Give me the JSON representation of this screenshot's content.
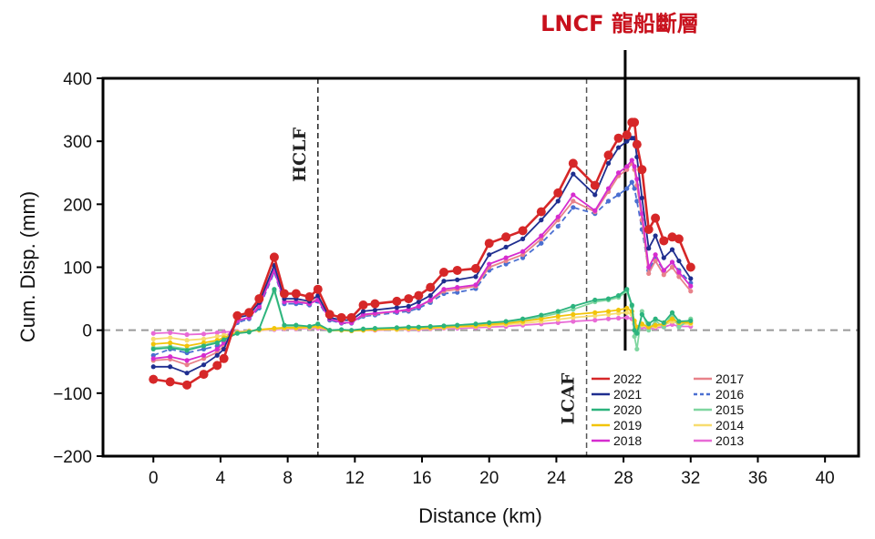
{
  "chart_data": {
    "type": "line",
    "title": "",
    "xlabel": "Distance (km)",
    "ylabel": "Cum. Disp. (mm)",
    "xlim": [
      -3,
      42
    ],
    "ylim": [
      -200,
      400
    ],
    "xticks": [
      0,
      4,
      8,
      12,
      16,
      20,
      24,
      28,
      32,
      36,
      40
    ],
    "yticks": [
      -200,
      -100,
      0,
      100,
      200,
      300,
      400
    ],
    "grid": false,
    "zero_line": 0,
    "legend_position": "bottom-right",
    "annotation": "LNCF 龍船斷層",
    "fault_lines": [
      {
        "label": "HCLF",
        "x": 9.8,
        "style": "dashed"
      },
      {
        "label": "LCAF",
        "x": 25.8,
        "style": "dashed"
      },
      {
        "label": "LNCF",
        "x": 28.1,
        "style": "solid"
      }
    ],
    "x": [
      0,
      1,
      2,
      3,
      3.8,
      4.2,
      5,
      5.7,
      6.3,
      7.2,
      7.8,
      8.5,
      9.3,
      9.8,
      10.5,
      11.2,
      11.8,
      12.5,
      13.2,
      14.5,
      15.2,
      15.8,
      16.5,
      17.3,
      18.1,
      19.2,
      20,
      21,
      22,
      23.1,
      24.1,
      25,
      26.3,
      27.1,
      27.7,
      28.2,
      28.5,
      28.65,
      28.8,
      29.1,
      29.5,
      29.9,
      30.4,
      30.9,
      31.3,
      32
    ],
    "series": [
      {
        "name": "2022",
        "color": "#d62728",
        "dashed": false,
        "marker": "large",
        "values": [
          -78,
          -82,
          -87,
          -70,
          -56,
          -45,
          23,
          28,
          50,
          116,
          58,
          58,
          53,
          65,
          25,
          20,
          20,
          40,
          42,
          46,
          50,
          55,
          68,
          92,
          95,
          98,
          138,
          148,
          158,
          188,
          218,
          265,
          230,
          278,
          305,
          310,
          330,
          330,
          295,
          255,
          160,
          178,
          142,
          148,
          145,
          100
        ]
      },
      {
        "name": "2021",
        "color": "#1f2e8f",
        "dashed": false,
        "marker": "small",
        "values": [
          -58,
          -58,
          -68,
          -55,
          -40,
          -30,
          20,
          24,
          44,
          103,
          50,
          50,
          46,
          55,
          20,
          16,
          16,
          30,
          32,
          36,
          38,
          45,
          55,
          78,
          80,
          85,
          120,
          132,
          145,
          175,
          205,
          248,
          215,
          265,
          290,
          300,
          305,
          305,
          275,
          210,
          130,
          150,
          115,
          128,
          110,
          82
        ]
      },
      {
        "name": "2020",
        "color": "#2bb37d",
        "dashed": false,
        "marker": "small",
        "values": [
          -30,
          -28,
          -32,
          -25,
          -20,
          -15,
          -5,
          -3,
          2,
          65,
          8,
          8,
          6,
          10,
          0,
          1,
          0,
          2,
          3,
          4,
          5,
          5,
          6,
          7,
          8,
          10,
          12,
          14,
          18,
          24,
          30,
          38,
          48,
          50,
          55,
          65,
          40,
          0,
          -5,
          25,
          10,
          18,
          12,
          28,
          14,
          15
        ]
      },
      {
        "name": "2019",
        "color": "#f2c40a",
        "dashed": false,
        "marker": "small",
        "values": [
          -22,
          -20,
          -25,
          -20,
          -16,
          -12,
          -4,
          -2,
          1,
          3,
          4,
          4,
          5,
          6,
          0,
          0,
          -1,
          0,
          1,
          2,
          3,
          3,
          4,
          5,
          6,
          7,
          9,
          11,
          14,
          18,
          22,
          25,
          28,
          30,
          32,
          35,
          30,
          15,
          5,
          10,
          5,
          8,
          10,
          18,
          12,
          12
        ]
      },
      {
        "name": "2018",
        "color": "#d62ccf",
        "dashed": false,
        "marker": "small",
        "values": [
          -45,
          -42,
          -48,
          -40,
          -30,
          -20,
          15,
          20,
          38,
          95,
          45,
          45,
          42,
          48,
          18,
          12,
          12,
          25,
          27,
          30,
          33,
          38,
          48,
          65,
          68,
          72,
          105,
          115,
          125,
          150,
          180,
          215,
          190,
          225,
          250,
          260,
          270,
          260,
          240,
          185,
          100,
          120,
          95,
          108,
          92,
          70
        ]
      },
      {
        "name": "2017",
        "color": "#e8828a",
        "dashed": false,
        "marker": "small",
        "values": [
          -48,
          -46,
          -55,
          -45,
          -35,
          -25,
          15,
          20,
          38,
          98,
          46,
          46,
          43,
          50,
          18,
          12,
          12,
          24,
          26,
          30,
          32,
          38,
          47,
          62,
          65,
          70,
          100,
          110,
          120,
          145,
          175,
          205,
          188,
          220,
          245,
          255,
          265,
          255,
          230,
          175,
          90,
          110,
          88,
          100,
          85,
          62
        ]
      },
      {
        "name": "2016",
        "color": "#4a6fd1",
        "dashed": true,
        "marker": "small",
        "values": [
          -40,
          -30,
          -36,
          -30,
          -25,
          -18,
          12,
          18,
          35,
          92,
          42,
          42,
          40,
          46,
          16,
          11,
          11,
          22,
          24,
          28,
          30,
          35,
          44,
          58,
          60,
          66,
          95,
          105,
          115,
          138,
          165,
          195,
          185,
          205,
          215,
          225,
          235,
          225,
          205,
          160,
          95,
          115,
          95,
          108,
          95,
          75
        ]
      },
      {
        "name": "2015",
        "color": "#7fd6a0",
        "dashed": false,
        "marker": "small",
        "values": [
          -28,
          -26,
          -30,
          -24,
          -18,
          -12,
          -4,
          -2,
          2,
          62,
          6,
          6,
          5,
          8,
          -1,
          0,
          -1,
          1,
          2,
          3,
          4,
          4,
          5,
          6,
          7,
          9,
          11,
          13,
          16,
          21,
          27,
          33,
          45,
          48,
          52,
          62,
          38,
          -10,
          -30,
          30,
          0,
          15,
          5,
          25,
          5,
          18
        ]
      },
      {
        "name": "2014",
        "color": "#f7dc6f",
        "dashed": false,
        "marker": "small",
        "values": [
          -14,
          -12,
          -16,
          -14,
          -10,
          -8,
          -3,
          -1,
          0,
          2,
          3,
          3,
          4,
          5,
          0,
          0,
          -1,
          0,
          1,
          1,
          2,
          2,
          3,
          4,
          5,
          6,
          7,
          9,
          11,
          14,
          17,
          20,
          23,
          25,
          27,
          28,
          25,
          12,
          3,
          8,
          4,
          6,
          8,
          14,
          10,
          10
        ]
      },
      {
        "name": "2013",
        "color": "#e86ad6",
        "dashed": false,
        "marker": "small",
        "values": [
          -5,
          -4,
          -7,
          -6,
          -4,
          -3,
          -2,
          -1,
          0,
          1,
          2,
          2,
          3,
          3,
          0,
          0,
          -1,
          0,
          0,
          1,
          1,
          1,
          2,
          3,
          3,
          4,
          5,
          6,
          8,
          10,
          12,
          14,
          16,
          18,
          19,
          20,
          18,
          10,
          2,
          5,
          2,
          4,
          5,
          9,
          6,
          6
        ]
      }
    ]
  }
}
